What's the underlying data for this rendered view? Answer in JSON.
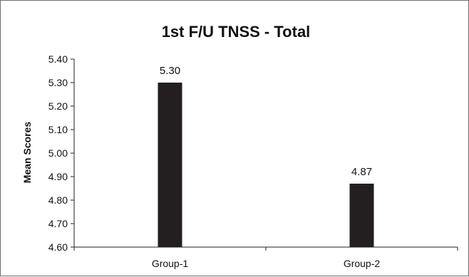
{
  "chart_data": {
    "type": "bar",
    "title": "1st F/U TNSS - Total",
    "ylabel": "Mean Scores",
    "xlabel": "",
    "categories": [
      "Group-1",
      "Group-2"
    ],
    "values": [
      5.3,
      4.87
    ],
    "value_labels": [
      "5.30",
      "4.87"
    ],
    "ylim": [
      4.6,
      5.4
    ],
    "yticks": [
      {
        "value": 4.6,
        "label": "4.60"
      },
      {
        "value": 4.7,
        "label": "4.70"
      },
      {
        "value": 4.8,
        "label": "4.80"
      },
      {
        "value": 4.9,
        "label": "4.90"
      },
      {
        "value": 5.0,
        "label": "5.00"
      },
      {
        "value": 5.1,
        "label": "5.10"
      },
      {
        "value": 5.2,
        "label": "5.20"
      },
      {
        "value": 5.3,
        "label": "5.30"
      },
      {
        "value": 5.4,
        "label": "5.40"
      }
    ],
    "grid": false,
    "legend": "none",
    "colors": {
      "bar": "#231f20",
      "axis": "#222222",
      "text": "#111111"
    }
  }
}
